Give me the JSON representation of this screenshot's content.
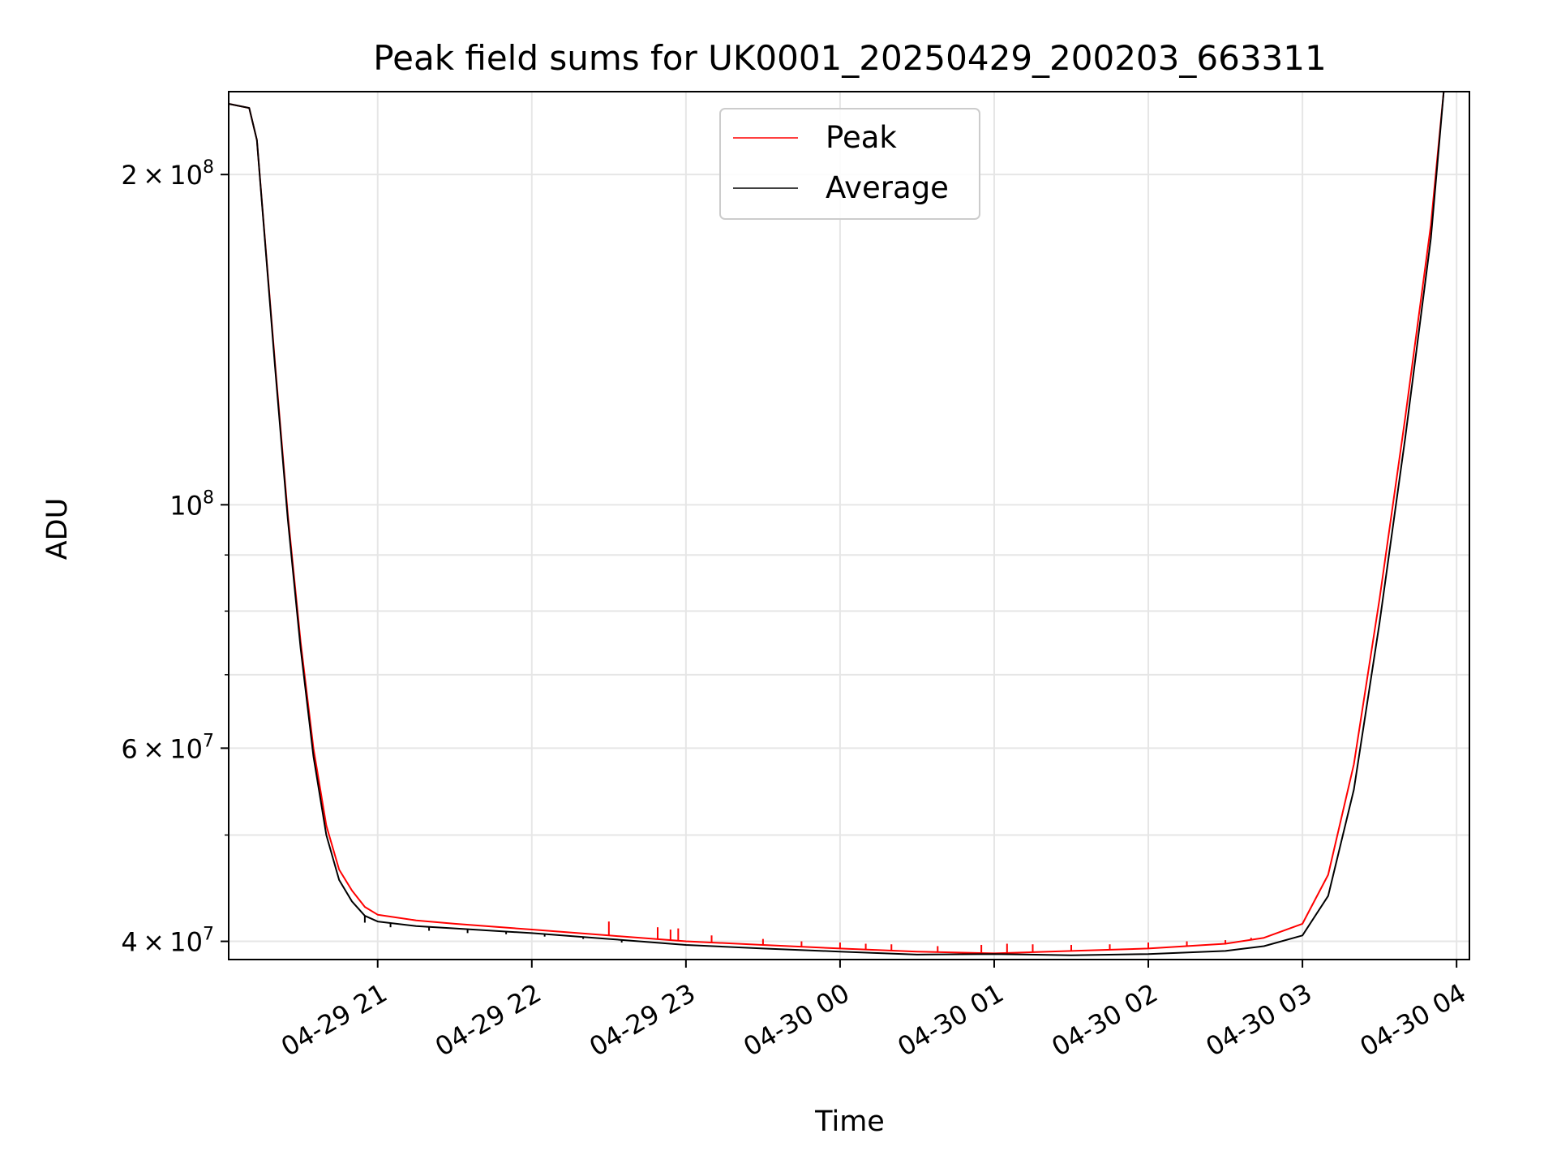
{
  "chart_data": {
    "type": "line",
    "title": "Peak field sums for UK0001_20250429_200203_663311",
    "xlabel": "Time",
    "ylabel": "ADU",
    "y_scale": "log",
    "ylim": [
      38500000,
      238000000
    ],
    "xlim": [
      "2025-04-29 20:02",
      "2025-04-30 04:05"
    ],
    "grid": true,
    "legend_position": "upper center",
    "x_ticks": [
      {
        "value": "2025-04-29 21:00",
        "label": "04-29 21"
      },
      {
        "value": "2025-04-29 22:00",
        "label": "04-29 22"
      },
      {
        "value": "2025-04-29 23:00",
        "label": "04-29 23"
      },
      {
        "value": "2025-04-30 00:00",
        "label": "04-30 00"
      },
      {
        "value": "2025-04-30 01:00",
        "label": "04-30 01"
      },
      {
        "value": "2025-04-30 02:00",
        "label": "04-30 02"
      },
      {
        "value": "2025-04-30 03:00",
        "label": "04-30 03"
      },
      {
        "value": "2025-04-30 04:00",
        "label": "04-30 04"
      }
    ],
    "y_major_ticks": [
      {
        "value": 40000000,
        "mantissa": "4",
        "exponent": "7"
      },
      {
        "value": 60000000,
        "mantissa": "6",
        "exponent": "7"
      },
      {
        "value": 100000000,
        "mantissa": "",
        "exponent": "8"
      },
      {
        "value": 200000000,
        "mantissa": "2",
        "exponent": "8"
      }
    ],
    "y_minor_ticks": [
      50000000,
      70000000,
      80000000,
      90000000
    ],
    "series": [
      {
        "name": "Peak",
        "color": "#ff0000",
        "x": [
          "2025-04-29 20:02",
          "2025-04-29 20:10",
          "2025-04-29 20:13",
          "2025-04-29 20:20",
          "2025-04-29 20:25",
          "2025-04-29 20:30",
          "2025-04-29 20:35",
          "2025-04-29 20:40",
          "2025-04-29 20:45",
          "2025-04-29 20:50",
          "2025-04-29 20:55",
          "2025-04-29 21:00",
          "2025-04-29 21:15",
          "2025-04-29 21:30",
          "2025-04-29 22:00",
          "2025-04-29 22:30",
          "2025-04-29 23:00",
          "2025-04-29 23:30",
          "2025-04-30 00:00",
          "2025-04-30 00:30",
          "2025-04-30 01:00",
          "2025-04-30 01:30",
          "2025-04-30 02:00",
          "2025-04-30 02:30",
          "2025-04-30 02:45",
          "2025-04-30 03:00",
          "2025-04-30 03:10",
          "2025-04-30 03:20",
          "2025-04-30 03:30",
          "2025-04-30 03:40",
          "2025-04-30 03:50",
          "2025-04-30 03:55"
        ],
        "y": [
          232000000,
          230000000,
          215000000,
          135000000,
          98000000,
          75000000,
          60000000,
          51000000,
          46500000,
          44500000,
          43000000,
          42300000,
          41800000,
          41500000,
          41000000,
          40500000,
          40000000,
          39700000,
          39400000,
          39150000,
          39000000,
          39200000,
          39400000,
          39800000,
          40300000,
          41500000,
          46000000,
          58000000,
          82000000,
          120000000,
          180000000,
          238000000
        ],
        "spikes": [
          {
            "x": "2025-04-29 22:30",
            "y": 41700000
          },
          {
            "x": "2025-04-29 22:49",
            "y": 41200000
          },
          {
            "x": "2025-04-29 22:54",
            "y": 41000000
          },
          {
            "x": "2025-04-29 22:57",
            "y": 41100000
          },
          {
            "x": "2025-04-29 23:10",
            "y": 40500000
          },
          {
            "x": "2025-04-29 23:30",
            "y": 40200000
          },
          {
            "x": "2025-04-29 23:45",
            "y": 40000000
          },
          {
            "x": "2025-04-30 00:00",
            "y": 39900000
          },
          {
            "x": "2025-04-30 00:10",
            "y": 39800000
          },
          {
            "x": "2025-04-30 00:20",
            "y": 39750000
          },
          {
            "x": "2025-04-30 00:38",
            "y": 39600000
          },
          {
            "x": "2025-04-30 00:55",
            "y": 39700000
          },
          {
            "x": "2025-04-30 01:05",
            "y": 39800000
          },
          {
            "x": "2025-04-30 01:15",
            "y": 39750000
          },
          {
            "x": "2025-04-30 01:30",
            "y": 39700000
          },
          {
            "x": "2025-04-30 01:45",
            "y": 39750000
          },
          {
            "x": "2025-04-30 02:00",
            "y": 39900000
          },
          {
            "x": "2025-04-30 02:15",
            "y": 40000000
          },
          {
            "x": "2025-04-30 02:30",
            "y": 40100000
          },
          {
            "x": "2025-04-30 02:40",
            "y": 40300000
          },
          {
            "x": "2025-04-30 02:50",
            "y": 40700000
          }
        ]
      },
      {
        "name": "Average",
        "color": "#000000",
        "x": [
          "2025-04-29 20:02",
          "2025-04-29 20:10",
          "2025-04-29 20:13",
          "2025-04-29 20:20",
          "2025-04-29 20:25",
          "2025-04-29 20:30",
          "2025-04-29 20:35",
          "2025-04-29 20:40",
          "2025-04-29 20:45",
          "2025-04-29 20:50",
          "2025-04-29 20:55",
          "2025-04-29 21:00",
          "2025-04-29 21:15",
          "2025-04-29 21:30",
          "2025-04-29 22:00",
          "2025-04-29 22:30",
          "2025-04-29 23:00",
          "2025-04-29 23:30",
          "2025-04-30 00:00",
          "2025-04-30 00:30",
          "2025-04-30 01:00",
          "2025-04-30 01:30",
          "2025-04-30 02:00",
          "2025-04-30 02:30",
          "2025-04-30 02:45",
          "2025-04-30 03:00",
          "2025-04-30 03:10",
          "2025-04-30 03:20",
          "2025-04-30 03:30",
          "2025-04-30 03:40",
          "2025-04-30 03:50",
          "2025-04-30 03:55"
        ],
        "y": [
          232000000,
          230000000,
          215000000,
          134000000,
          97000000,
          74000000,
          59000000,
          50000000,
          45500000,
          43500000,
          42200000,
          41700000,
          41300000,
          41100000,
          40700000,
          40200000,
          39700000,
          39400000,
          39150000,
          38900000,
          38950000,
          38850000,
          38950000,
          39200000,
          39600000,
          40500000,
          44000000,
          55000000,
          78000000,
          115000000,
          175000000,
          238000000
        ],
        "dips": [
          {
            "x": "2025-04-29 20:55",
            "y": 41600000
          },
          {
            "x": "2025-04-29 21:05",
            "y": 41200000
          },
          {
            "x": "2025-04-29 21:20",
            "y": 40900000
          },
          {
            "x": "2025-04-29 21:35",
            "y": 40700000
          },
          {
            "x": "2025-04-29 21:50",
            "y": 40600000
          },
          {
            "x": "2025-04-29 22:05",
            "y": 40400000
          },
          {
            "x": "2025-04-29 22:20",
            "y": 40200000
          },
          {
            "x": "2025-04-29 22:35",
            "y": 39900000
          }
        ]
      }
    ]
  }
}
